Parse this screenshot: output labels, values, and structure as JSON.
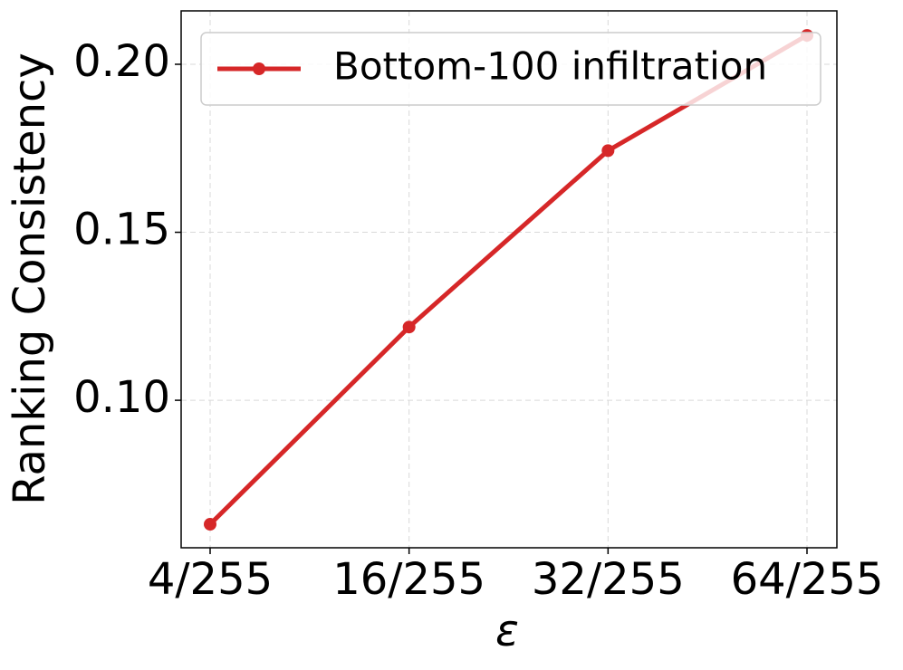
{
  "chart_data": {
    "type": "line",
    "x_label": "ε",
    "y_label": "Ranking Consistency",
    "categories": [
      "4/255",
      "16/255",
      "32/255",
      "64/255"
    ],
    "series": [
      {
        "name": "Bottom-100 infiltration",
        "color": "#d62728",
        "values": [
          0.0631,
          0.1218,
          0.1743,
          0.2086
        ]
      }
    ],
    "ylim": [
      0.0561,
      0.2159
    ],
    "yticks": [
      {
        "value": 0.1,
        "label": "0.10"
      },
      {
        "value": 0.15,
        "label": "0.15"
      },
      {
        "value": 0.2,
        "label": "0.20"
      }
    ],
    "grid": true,
    "legend": "upper right"
  }
}
